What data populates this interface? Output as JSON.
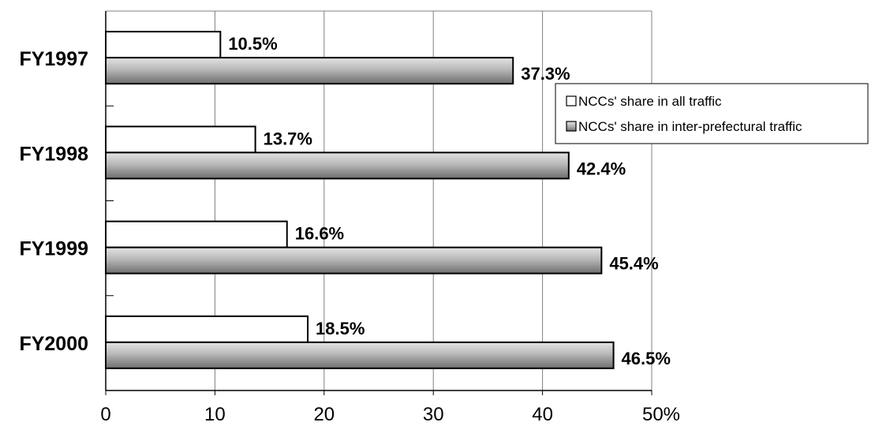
{
  "chart_data": {
    "type": "bar",
    "orientation": "horizontal",
    "categories": [
      "FY1997",
      "FY1998",
      "FY1999",
      "FY2000"
    ],
    "series": [
      {
        "name": "NCCs' share in all traffic",
        "values": [
          10.5,
          13.7,
          16.6,
          18.5
        ],
        "labels": [
          "10.5%",
          "13.7%",
          "16.6%",
          "18.5%"
        ],
        "color": "#ffffff"
      },
      {
        "name": "NCCs' share in inter-prefectural traffic",
        "values": [
          37.3,
          42.4,
          45.4,
          46.5
        ],
        "labels": [
          "37.3%",
          "42.4%",
          "45.4%",
          "46.5%"
        ],
        "color": "#a6a6a6"
      }
    ],
    "xlim": [
      0,
      50
    ],
    "ticks": [
      0,
      10,
      20,
      30,
      40,
      50
    ],
    "tick_labels": [
      "0",
      "10",
      "20",
      "30",
      "40",
      "50%"
    ],
    "grid": true,
    "legend": "right"
  }
}
